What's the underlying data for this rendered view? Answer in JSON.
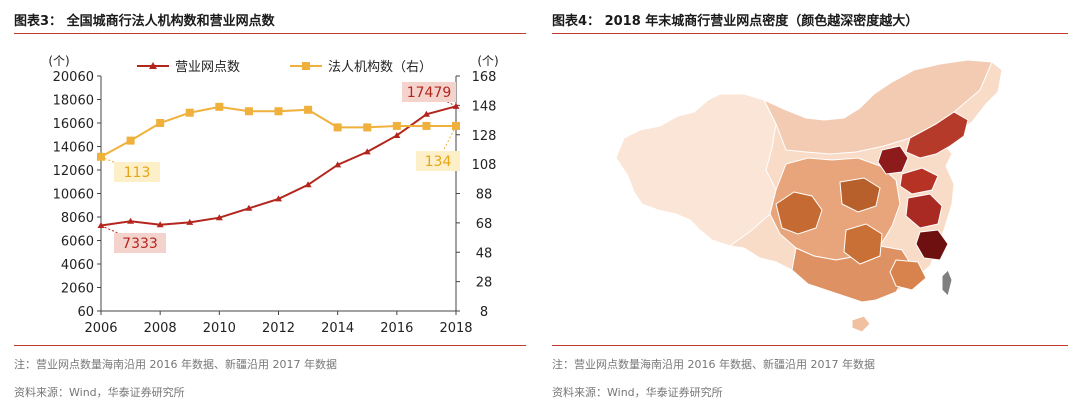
{
  "left": {
    "title": "图表3： 全国城商行法人机构数和营业网点数",
    "note": "注：营业网点数量海南沿用 2016 年数据、新疆沿用 2017 年数据",
    "source": "资料来源：Wind，华泰证券研究所"
  },
  "right": {
    "title": "图表4： 2018 年末城商行营业网点密度（颜色越深密度越大）",
    "note": "注：营业网点数量海南沿用 2016 年数据、新疆沿用 2017 年数据",
    "source": "资料来源：Wind，华泰证券研究所"
  },
  "colors": {
    "rule": "#c0392b",
    "branches": "#b3261e",
    "legal_entities": "#f0b03c",
    "map_light": "#f7d9c6",
    "map_mid": "#cf7a45",
    "map_dark": "#8e1b1b",
    "taiwan": "#7f7f7f"
  },
  "chart_data": [
    {
      "type": "line",
      "title": "全国城商行法人机构数和营业网点数",
      "x": [
        2006,
        2007,
        2008,
        2009,
        2010,
        2011,
        2012,
        2013,
        2014,
        2015,
        2016,
        2017,
        2018
      ],
      "x_ticks": [
        "2006",
        "2008",
        "2010",
        "2012",
        "2014",
        "2016",
        "2018"
      ],
      "left_axis": {
        "unit": "(个)",
        "ylim": [
          60,
          20060
        ],
        "ticks": [
          "60",
          "2060",
          "4060",
          "6060",
          "8060",
          "10060",
          "12060",
          "14060",
          "16060",
          "18060",
          "20060"
        ]
      },
      "right_axis": {
        "unit": "(个)",
        "ylim": [
          8,
          168
        ],
        "ticks": [
          "8",
          "28",
          "48",
          "68",
          "88",
          "108",
          "128",
          "148",
          "168"
        ]
      },
      "series": [
        {
          "name": "营业网点数",
          "axis": "left",
          "marker": "triangle",
          "values": [
            7333,
            7700,
            7400,
            7600,
            8000,
            8800,
            9600,
            10800,
            12500,
            13600,
            15000,
            16800,
            17479
          ]
        },
        {
          "name": "法人机构数（右）",
          "axis": "right",
          "marker": "square",
          "values": [
            113,
            124,
            136,
            143,
            147,
            144,
            144,
            145,
            133,
            133,
            134,
            134,
            134
          ]
        }
      ],
      "annotations": [
        {
          "label": "17479",
          "series": 0,
          "x": 2018
        },
        {
          "label": "7333",
          "series": 0,
          "x": 2006
        },
        {
          "label": "113",
          "series": 1,
          "x": 2006
        },
        {
          "label": "134",
          "series": 1,
          "x": 2018
        }
      ],
      "legend_position": "top"
    },
    {
      "type": "choropleth",
      "title": "2018 年末城商行营业网点密度（颜色越深密度越大）",
      "legend": "颜色越深密度越大"
    }
  ]
}
